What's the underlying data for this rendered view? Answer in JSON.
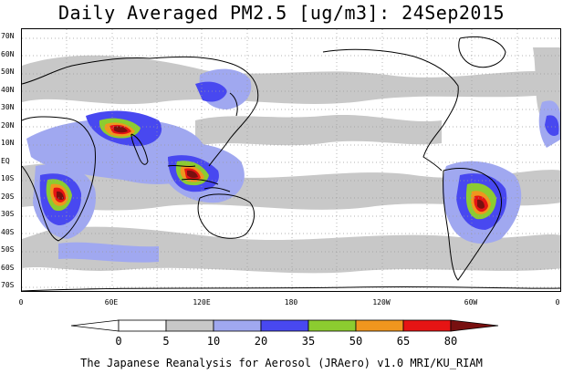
{
  "title": "Daily Averaged PM2.5 [ug/m3]: 24Sep2015",
  "footer": "The Japanese Reanalysis for Aerosol (JRAero) v1.0 MRI/KU_RIAM",
  "map": {
    "lat_labels": [
      "70N",
      "60N",
      "50N",
      "40N",
      "30N",
      "20N",
      "10N",
      "EQ",
      "10S",
      "20S",
      "30S",
      "40S",
      "50S",
      "60S",
      "70S"
    ],
    "lon_labels": [
      "0",
      "60E",
      "120E",
      "180",
      "120W",
      "60W",
      "0"
    ],
    "colors": {
      "ocean": "#ffffff",
      "land_outline": "#000000",
      "grid": "#9a9a9a"
    }
  },
  "colorbar": {
    "ticks": [
      "0",
      "5",
      "10",
      "20",
      "35",
      "50",
      "65",
      "80"
    ],
    "colors": [
      "#ffffff",
      "#ffffff",
      "#c8c8c8",
      "#a0a8f0",
      "#4848f0",
      "#8ccc30",
      "#f0961e",
      "#e61414",
      "#781010"
    ]
  }
}
